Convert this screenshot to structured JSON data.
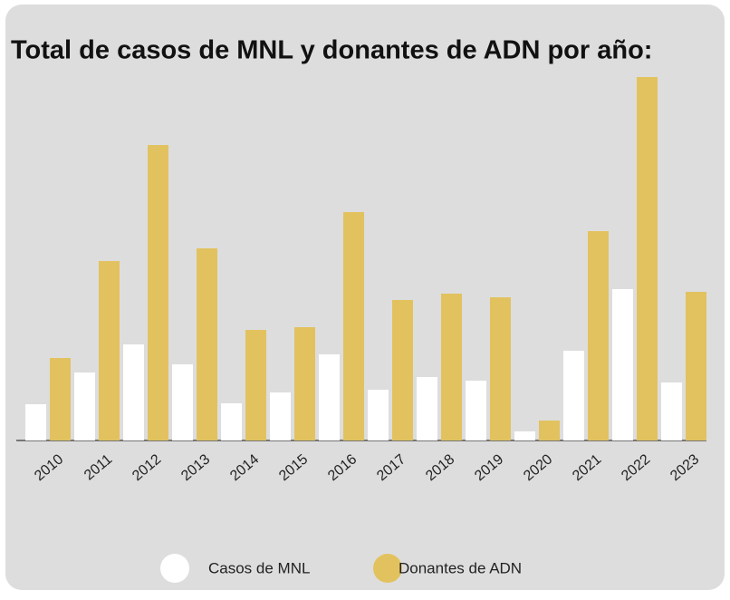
{
  "chart_data": {
    "type": "bar",
    "title": "Total de casos de MNL y donantes de ADN por año:",
    "categories": [
      "2010",
      "2011",
      "2012",
      "2013",
      "2014",
      "2015",
      "2016",
      "2017",
      "2018",
      "2019",
      "2020",
      "2021",
      "2022",
      "2023"
    ],
    "series": [
      {
        "name": "Casos de MNL",
        "color": "#ffffff",
        "values": [
          40,
          75,
          106,
          84,
          41,
          53,
          95,
          56,
          70,
          66,
          10,
          99,
          167,
          64
        ]
      },
      {
        "name": "Donantes de ADN",
        "color": "#e2c25f",
        "values": [
          91,
          198,
          326,
          212,
          122,
          125,
          252,
          155,
          162,
          158,
          22,
          231,
          401,
          164
        ]
      }
    ],
    "legend": "bottom"
  }
}
